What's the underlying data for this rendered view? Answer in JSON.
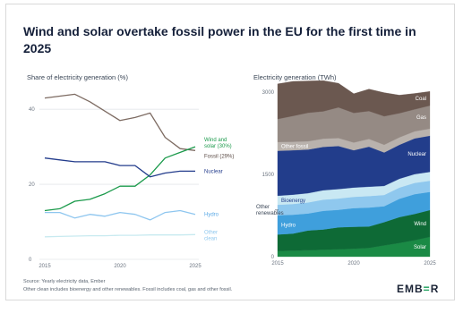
{
  "title": "Wind and solar overtake fossil power in the EU for the first time in 2025",
  "logo": {
    "pre": "EMB",
    "mid": "=",
    "post": "R"
  },
  "footer": {
    "line1": "Source: Yearly electricity data, Ember",
    "line2": "Other clean includes bioenergy and other renewables. Fossil includes coal, gas and other fossil."
  },
  "chart_data": [
    {
      "type": "line",
      "title": "Share of electricity generation (%)",
      "x": [
        2015,
        2016,
        2017,
        2018,
        2019,
        2020,
        2021,
        2022,
        2023,
        2024,
        2025
      ],
      "xticks": [
        2015,
        2020,
        2025
      ],
      "ylim": [
        0,
        46
      ],
      "yticks": [
        0,
        20,
        40
      ],
      "series": [
        {
          "name": "Fossil (29%)",
          "color": "#7d6b62",
          "values": [
            43,
            43.5,
            44,
            42,
            39.5,
            37,
            37.8,
            39,
            32.5,
            29.5,
            29
          ]
        },
        {
          "name": "Wind and solar (30%)",
          "color": "#1b9a4b",
          "values": [
            13,
            13.5,
            15.5,
            16,
            17.5,
            19.5,
            19.5,
            22.5,
            27,
            28.5,
            30
          ]
        },
        {
          "name": "Nuclear",
          "color": "#233c8c",
          "values": [
            27,
            26.5,
            26,
            26,
            26,
            25,
            25,
            22,
            23,
            23.5,
            23.5
          ]
        },
        {
          "name": "Hydro",
          "color": "#8ec6ef",
          "values": [
            12.5,
            12.5,
            11,
            12,
            11.5,
            12.5,
            12,
            10.5,
            12.5,
            13,
            12
          ]
        },
        {
          "name": "Other clean",
          "color": "#c8eaf0",
          "values": [
            6,
            6.1,
            6.2,
            6.3,
            6.3,
            6.4,
            6.4,
            6.5,
            6.5,
            6.5,
            6.6
          ]
        }
      ]
    },
    {
      "type": "area",
      "title": "Electricity generation (TWh)",
      "x": [
        2015,
        2016,
        2017,
        2018,
        2019,
        2020,
        2021,
        2022,
        2023,
        2024,
        2025
      ],
      "xticks": [
        2015,
        2020,
        2025
      ],
      "ylim": [
        0,
        3000
      ],
      "yticks": [
        0,
        1500,
        3000
      ],
      "series": [
        {
          "name": "Solar",
          "color": "#1a8a45",
          "values": [
            105,
            110,
            118,
            125,
            135,
            145,
            160,
            205,
            250,
            300,
            360
          ]
        },
        {
          "name": "Wind",
          "color": "#0e6a36",
          "values": [
            300,
            310,
            360,
            370,
            400,
            400,
            390,
            425,
            470,
            480,
            490
          ]
        },
        {
          "name": "Hydro",
          "color": "#3f9fdc",
          "values": [
            350,
            345,
            310,
            340,
            320,
            340,
            345,
            290,
            335,
            360,
            330
          ]
        },
        {
          "name": "Other renewables",
          "color": "#8fc8ee",
          "values": [
            190,
            195,
            200,
            205,
            205,
            205,
            210,
            205,
            205,
            205,
            205
          ]
        },
        {
          "name": "Bioenergy",
          "color": "#c9e8f3",
          "values": [
            165,
            170,
            170,
            172,
            172,
            170,
            170,
            165,
            160,
            160,
            160
          ]
        },
        {
          "name": "Nuclear",
          "color": "#223d8b",
          "values": [
            820,
            810,
            795,
            790,
            785,
            680,
            730,
            610,
            620,
            650,
            660
          ]
        },
        {
          "name": "Other fossil",
          "color": "#b9b2ad",
          "values": [
            160,
            155,
            150,
            148,
            145,
            140,
            140,
            140,
            135,
            130,
            128
          ]
        },
        {
          "name": "Gas",
          "color": "#958a84",
          "values": [
            420,
            470,
            520,
            500,
            560,
            540,
            510,
            520,
            440,
            400,
            420
          ]
        },
        {
          "name": "Coal",
          "color": "#6b5850",
          "values": [
            640,
            630,
            580,
            560,
            440,
            350,
            400,
            430,
            330,
            290,
            260
          ]
        }
      ]
    }
  ],
  "left_labels": {
    "fossil": [
      "Wind and",
      "solar (30%)"
    ],
    "wind_solar": [
      "Fossil (29%)"
    ],
    "fossil_name": [
      "Fossil (29%)"
    ],
    "nuclear": "Nuclear",
    "hydro": "Hydro",
    "other_clean": [
      "Other",
      "clean"
    ]
  },
  "right_labels": {
    "coal": "Coal",
    "gas": "Gas",
    "other_fossil": "Other fossil",
    "nuclear": "Nuclear",
    "bioenergy": "Bioenergy",
    "other_renewables": [
      "Other",
      "renewables"
    ],
    "hydro": "Hydro",
    "wind": "Wind",
    "solar": "Solar"
  }
}
